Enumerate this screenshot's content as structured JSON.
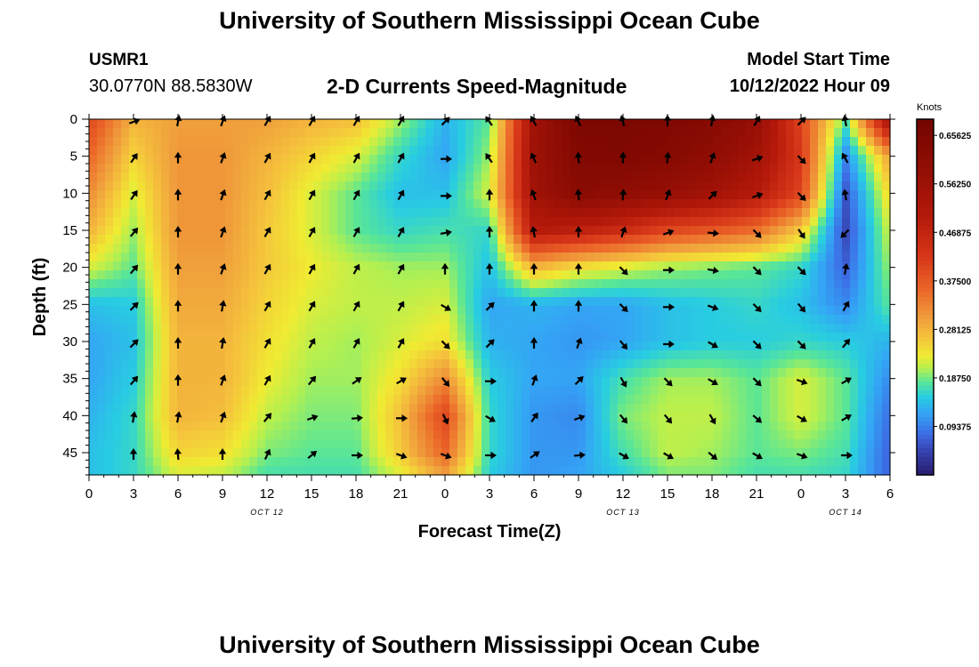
{
  "header": {
    "title": "University of Southern Mississippi Ocean Cube",
    "station": "USMR1",
    "coords": "30.0770N  88.5830W",
    "subtitle": "2-D Currents Speed-Magnitude",
    "model_start_label": "Model Start Time",
    "model_start_value": "10/12/2022 Hour 09"
  },
  "footer": {
    "title": "University of Southern Mississippi Ocean Cube"
  },
  "chart_data": {
    "type": "heatmap",
    "title": "2-D Currents Speed-Magnitude",
    "xlabel": "Forecast Time(Z)",
    "ylabel": "Depth (ft)",
    "x_range": [
      0,
      54
    ],
    "y_range": [
      0,
      48
    ],
    "x_ticks": [
      0,
      3,
      6,
      9,
      12,
      15,
      18,
      21,
      24,
      27,
      30,
      33,
      36,
      39,
      42,
      45,
      48,
      51,
      54
    ],
    "x_tick_labels": [
      "0",
      "3",
      "6",
      "9",
      "12",
      "15",
      "18",
      "21",
      "0",
      "3",
      "6",
      "9",
      "12",
      "15",
      "18",
      "21",
      "0",
      "3",
      "6"
    ],
    "date_labels": [
      {
        "x": 12,
        "text": "OCT 12"
      },
      {
        "x": 36,
        "text": "OCT 13"
      },
      {
        "x": 51,
        "text": "OCT 14"
      }
    ],
    "y_ticks": [
      0,
      5,
      10,
      15,
      20,
      25,
      30,
      35,
      40,
      45
    ],
    "y_tick_labels": [
      "0",
      "5",
      "10",
      "15",
      "20",
      "25",
      "30",
      "35",
      "40",
      "45"
    ],
    "colorbar": {
      "label": "Knots",
      "range": [
        0.0,
        0.6875
      ],
      "ticks": [
        0.09375,
        0.1875,
        0.28125,
        0.375,
        0.46875,
        0.5625,
        0.65625
      ],
      "tick_labels": [
        "0.09375",
        "0.18750",
        "0.28125",
        "0.37500",
        "0.46875",
        "0.56250",
        "0.65625"
      ]
    },
    "speed_times_h": [
      0,
      3,
      6,
      9,
      12,
      15,
      18,
      21,
      24,
      27,
      30,
      33,
      36,
      39,
      42,
      45,
      48,
      51,
      54
    ],
    "speed_depths_ft": [
      0,
      5,
      10,
      15,
      20,
      25,
      30,
      35,
      40,
      45,
      48
    ],
    "speed_knots": [
      [
        0.4,
        0.28,
        0.3,
        0.3,
        0.3,
        0.28,
        0.27,
        0.2,
        0.13,
        0.18,
        0.55,
        0.66,
        0.66,
        0.65,
        0.63,
        0.58,
        0.4,
        0.18,
        0.55
      ],
      [
        0.36,
        0.25,
        0.31,
        0.31,
        0.28,
        0.25,
        0.22,
        0.16,
        0.12,
        0.2,
        0.56,
        0.64,
        0.65,
        0.63,
        0.6,
        0.55,
        0.42,
        0.1,
        0.3
      ],
      [
        0.32,
        0.22,
        0.31,
        0.31,
        0.27,
        0.22,
        0.18,
        0.14,
        0.14,
        0.22,
        0.55,
        0.62,
        0.6,
        0.58,
        0.55,
        0.5,
        0.4,
        0.06,
        0.25
      ],
      [
        0.28,
        0.2,
        0.31,
        0.31,
        0.26,
        0.22,
        0.18,
        0.16,
        0.17,
        0.16,
        0.5,
        0.48,
        0.45,
        0.4,
        0.38,
        0.35,
        0.26,
        0.05,
        0.22
      ],
      [
        0.22,
        0.18,
        0.3,
        0.3,
        0.26,
        0.23,
        0.21,
        0.2,
        0.2,
        0.14,
        0.28,
        0.24,
        0.22,
        0.2,
        0.19,
        0.18,
        0.16,
        0.07,
        0.2
      ],
      [
        0.14,
        0.15,
        0.29,
        0.29,
        0.25,
        0.22,
        0.21,
        0.21,
        0.22,
        0.12,
        0.13,
        0.12,
        0.12,
        0.14,
        0.15,
        0.16,
        0.14,
        0.1,
        0.18
      ],
      [
        0.12,
        0.14,
        0.28,
        0.28,
        0.24,
        0.21,
        0.2,
        0.22,
        0.24,
        0.13,
        0.12,
        0.11,
        0.12,
        0.14,
        0.15,
        0.15,
        0.16,
        0.15,
        0.13
      ],
      [
        0.12,
        0.15,
        0.28,
        0.28,
        0.23,
        0.2,
        0.2,
        0.24,
        0.32,
        0.15,
        0.12,
        0.12,
        0.17,
        0.2,
        0.2,
        0.18,
        0.22,
        0.18,
        0.1
      ],
      [
        0.13,
        0.16,
        0.28,
        0.27,
        0.21,
        0.19,
        0.19,
        0.27,
        0.4,
        0.16,
        0.11,
        0.1,
        0.19,
        0.21,
        0.21,
        0.18,
        0.22,
        0.18,
        0.08
      ],
      [
        0.14,
        0.16,
        0.25,
        0.24,
        0.19,
        0.18,
        0.18,
        0.26,
        0.36,
        0.16,
        0.11,
        0.11,
        0.17,
        0.21,
        0.2,
        0.18,
        0.19,
        0.17,
        0.07
      ],
      [
        0.14,
        0.16,
        0.22,
        0.21,
        0.17,
        0.17,
        0.17,
        0.22,
        0.3,
        0.15,
        0.11,
        0.12,
        0.15,
        0.19,
        0.19,
        0.17,
        0.17,
        0.16,
        0.07
      ]
    ],
    "vector_times_h": [
      3,
      6,
      9,
      12,
      15,
      18,
      21,
      24,
      27,
      30,
      33,
      36,
      39,
      42,
      45,
      48,
      51
    ],
    "vector_depths_ft": [
      0,
      5,
      10,
      15,
      20,
      25,
      30,
      35,
      40,
      45
    ],
    "vector_direction_deg": [
      [
        250,
        190,
        200,
        210,
        210,
        210,
        210,
        225,
        145,
        150,
        155,
        165,
        180,
        190,
        210,
        225,
        170
      ],
      [
        215,
        180,
        200,
        210,
        210,
        210,
        210,
        270,
        145,
        155,
        175,
        180,
        185,
        200,
        250,
        315,
        150
      ],
      [
        215,
        180,
        200,
        210,
        210,
        210,
        210,
        270,
        180,
        160,
        175,
        185,
        200,
        225,
        250,
        315,
        170
      ],
      [
        220,
        180,
        200,
        210,
        210,
        210,
        210,
        260,
        180,
        170,
        180,
        200,
        250,
        275,
        315,
        325,
        45
      ],
      [
        220,
        180,
        200,
        210,
        210,
        210,
        210,
        180,
        180,
        180,
        180,
        315,
        270,
        280,
        315,
        315,
        190
      ],
      [
        225,
        180,
        190,
        210,
        210,
        210,
        210,
        300,
        225,
        180,
        180,
        315,
        270,
        290,
        315,
        320,
        210
      ],
      [
        225,
        180,
        190,
        210,
        210,
        210,
        210,
        315,
        225,
        180,
        200,
        320,
        270,
        300,
        315,
        315,
        220
      ],
      [
        220,
        180,
        200,
        210,
        220,
        235,
        240,
        320,
        270,
        200,
        225,
        330,
        315,
        300,
        315,
        290,
        240
      ],
      [
        190,
        190,
        200,
        220,
        250,
        265,
        270,
        335,
        300,
        215,
        250,
        320,
        320,
        330,
        310,
        300,
        240
      ],
      [
        180,
        175,
        180,
        205,
        230,
        270,
        290,
        290,
        270,
        235,
        265,
        300,
        300,
        310,
        300,
        290,
        270
      ]
    ]
  }
}
